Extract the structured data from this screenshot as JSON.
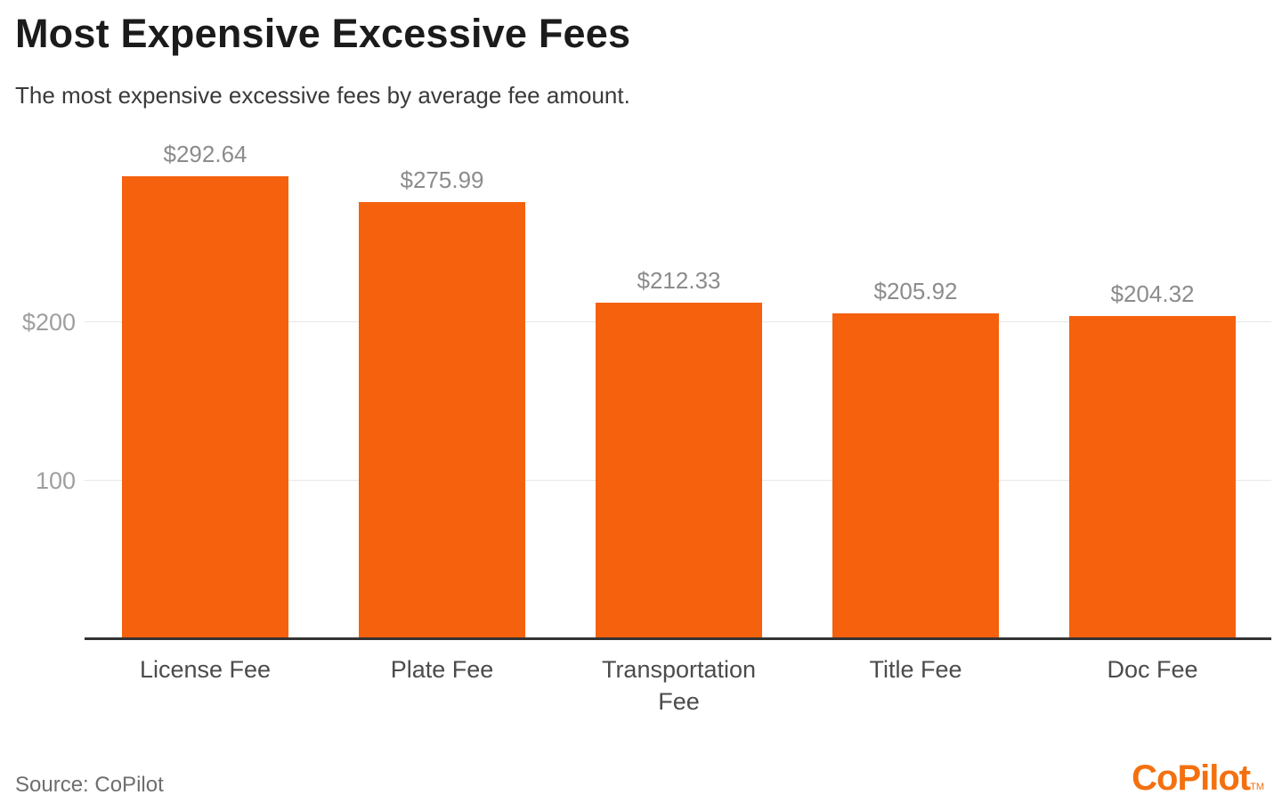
{
  "header": {
    "title": "Most Expensive Excessive Fees",
    "subtitle": "The most expensive excessive fees by average fee amount."
  },
  "chart_data": {
    "type": "bar",
    "title": "Most Expensive Excessive Fees",
    "subtitle": "The most expensive excessive fees by average fee amount.",
    "categories": [
      "License Fee",
      "Plate Fee",
      "Transportation Fee",
      "Title Fee",
      "Doc Fee"
    ],
    "values": [
      292.64,
      275.99,
      212.33,
      205.92,
      204.32
    ],
    "value_labels": [
      "$292.64",
      "$275.99",
      "$212.33",
      "$205.92",
      "$204.32"
    ],
    "xlabel": "",
    "ylabel": "",
    "ylim": [
      0,
      325
    ],
    "yticks": [
      {
        "value": 200,
        "label": "$200"
      },
      {
        "value": 100,
        "label": "100"
      }
    ],
    "grid": true,
    "legend": "none",
    "bar_color": "#f5610d",
    "value_label_color": "#8c8c8c",
    "tick_label_color": "#9f9f9f",
    "category_label_color": "#4b4b4b",
    "gridline_color": "#e7e7e7",
    "axis_line_color": "#333333"
  },
  "footer": {
    "source": "Source: CoPilot",
    "logo_text": "CoPilot",
    "logo_tm": "TM",
    "logo_color": "#f4700f"
  }
}
